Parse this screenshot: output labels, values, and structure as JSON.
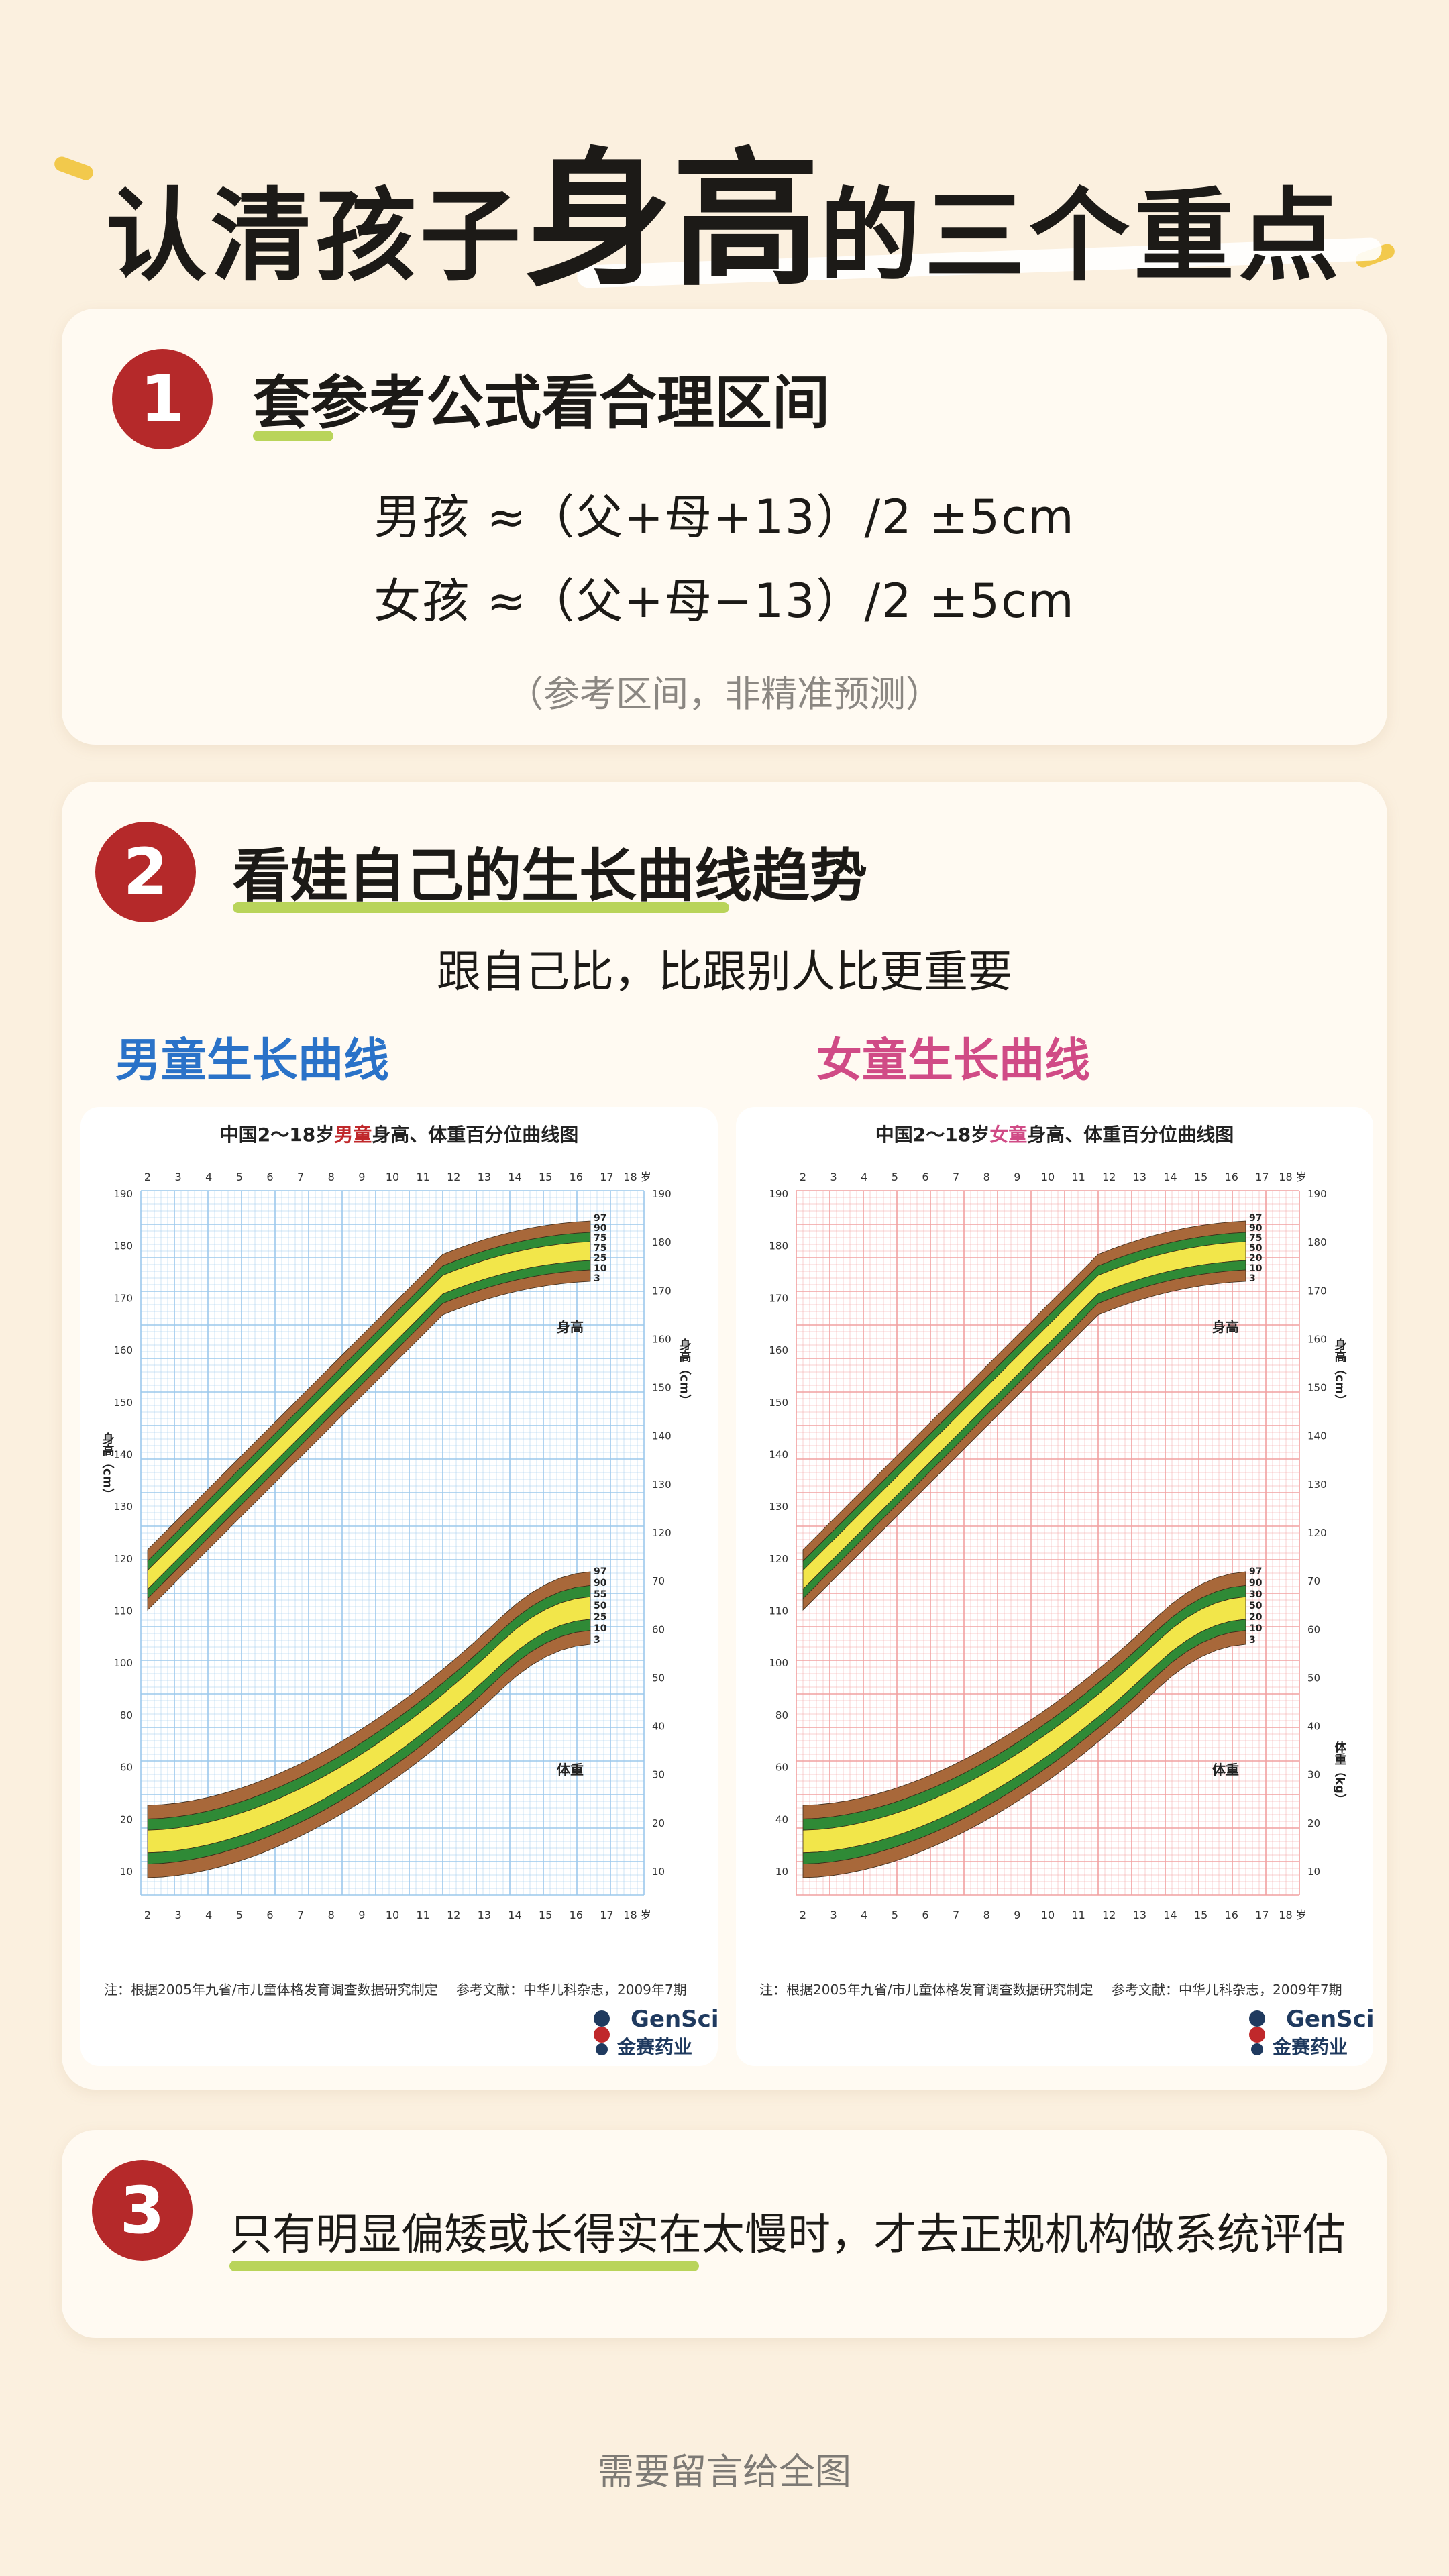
{
  "header": {
    "title_part1": "认清孩子",
    "title_highlight": "身高",
    "title_part2": "的三个重点"
  },
  "section1": {
    "number": "1",
    "title": "套参考公式看合理区间",
    "formula_boy": "男孩 ≈（父+母+13）/2 ±5cm",
    "formula_girl": "女孩 ≈（父+母−13）/2 ±5cm",
    "note": "（参考区间，非精准预测）"
  },
  "section2": {
    "number": "2",
    "title": "看娃自己的生长曲线趋势",
    "subtitle": "跟自己比，比跟别人比更重要",
    "boy_label": "男童生长曲线",
    "girl_label": "女童生长曲线",
    "boy_chart": {
      "title_pre": "中国2～18岁",
      "title_gender": "男童",
      "title_post": "身高、体重百分位曲线图",
      "note_left": "注：根据2005年九省/市儿童体格发育调查数据研究制定",
      "note_right": "参考文献：中华儿科杂志，2009年7期",
      "height_label": "身高",
      "weight_label": "体重",
      "axis_left": "身高（cm）",
      "axis_right": "身高（cm）",
      "height_percentiles": [
        "97",
        "90",
        "75",
        "75",
        "25",
        "10",
        "3"
      ],
      "weight_percentiles": [
        "97",
        "90",
        "55",
        "50",
        "25",
        "10",
        "3"
      ]
    },
    "girl_chart": {
      "title_pre": "中国2～18岁",
      "title_gender": "女童",
      "title_post": "身高、体重百分位曲线图",
      "note_left": "注：根据2005年九省/市儿童体格发育调查数据研究制定",
      "note_right": "参考文献：中华儿科杂志，2009年7期",
      "height_label": "身高",
      "weight_label": "体重",
      "axis_right_top": "身高（cm）",
      "axis_right_bottom": "体重（kg）",
      "height_percentiles": [
        "97",
        "90",
        "75",
        "50",
        "20",
        "10",
        "3"
      ],
      "weight_percentiles": [
        "97",
        "90",
        "30",
        "50",
        "20",
        "10",
        "3"
      ]
    },
    "brand_en": "GenSci",
    "brand_cn": "金赛药业",
    "ages_top": [
      "2",
      "3",
      "4",
      "5",
      "6",
      "7",
      "8",
      "9",
      "10",
      "11",
      "12",
      "13",
      "14",
      "15",
      "16",
      "17",
      "18 岁"
    ],
    "ages_bottom": [
      "2",
      "3",
      "4",
      "5",
      "6",
      "7",
      "8",
      "9",
      "10",
      "11",
      "12",
      "13",
      "14",
      "15",
      "16",
      "17",
      "18 岁"
    ],
    "boy_left_ticks": [
      "190",
      "180",
      "170",
      "160",
      "150",
      "140",
      "130",
      "120",
      "110",
      "100",
      "80",
      "60",
      "20",
      "10"
    ],
    "boy_right_ticks": [
      "190",
      "180",
      "170",
      "160",
      "150",
      "140",
      "130",
      "120",
      "70",
      "60",
      "50",
      "40",
      "30",
      "20",
      "10"
    ],
    "girl_left_ticks": [
      "190",
      "180",
      "170",
      "160",
      "150",
      "140",
      "130",
      "120",
      "110",
      "100",
      "80",
      "60",
      "40",
      "10"
    ],
    "girl_right_ticks": [
      "190",
      "180",
      "170",
      "160",
      "150",
      "140",
      "130",
      "120",
      "70",
      "60",
      "50",
      "40",
      "30",
      "20",
      "10"
    ],
    "colors": {
      "brown": "#a8683a",
      "green": "#2f8a36",
      "yellow": "#f2e64a",
      "boy_grid": "#9cc8ec",
      "girl_grid": "#f1a0a0",
      "boy_accent": "#2a72c8",
      "girl_accent": "#d04b86"
    }
  },
  "section3": {
    "number": "3",
    "text": "只有明显偏矮或长得实在太慢时，才去正规机构做系统评估"
  },
  "footer": {
    "text": "需要留言给全图"
  }
}
